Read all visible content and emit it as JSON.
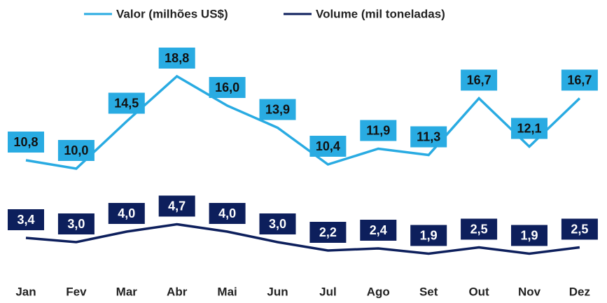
{
  "chart_data": {
    "type": "line",
    "categories": [
      "Jan",
      "Fev",
      "Mar",
      "Abr",
      "Mai",
      "Jun",
      "Jul",
      "Ago",
      "Set",
      "Out",
      "Nov",
      "Dez"
    ],
    "series": [
      {
        "name": "Valor (milhões US$)",
        "color": "#29abe2",
        "values": [
          10.8,
          10.0,
          14.5,
          18.8,
          16.0,
          13.9,
          10.4,
          11.9,
          11.3,
          16.7,
          12.1,
          16.7
        ],
        "value_labels": [
          "10,8",
          "10,0",
          "14,5",
          "18,8",
          "16,0",
          "13,9",
          "10,4",
          "11,9",
          "11,3",
          "16,7",
          "12,1",
          "16,7"
        ]
      },
      {
        "name": "Volume (mil toneladas)",
        "color": "#0d1f5c",
        "values": [
          3.4,
          3.0,
          4.0,
          4.7,
          4.0,
          3.0,
          2.2,
          2.4,
          1.9,
          2.5,
          1.9,
          2.5
        ],
        "value_labels": [
          "3,4",
          "3,0",
          "4,0",
          "4,7",
          "4,0",
          "3,0",
          "2,2",
          "2,4",
          "1,9",
          "2,5",
          "1,9",
          "2,5"
        ]
      }
    ],
    "ylim": [
      0,
      22
    ]
  }
}
